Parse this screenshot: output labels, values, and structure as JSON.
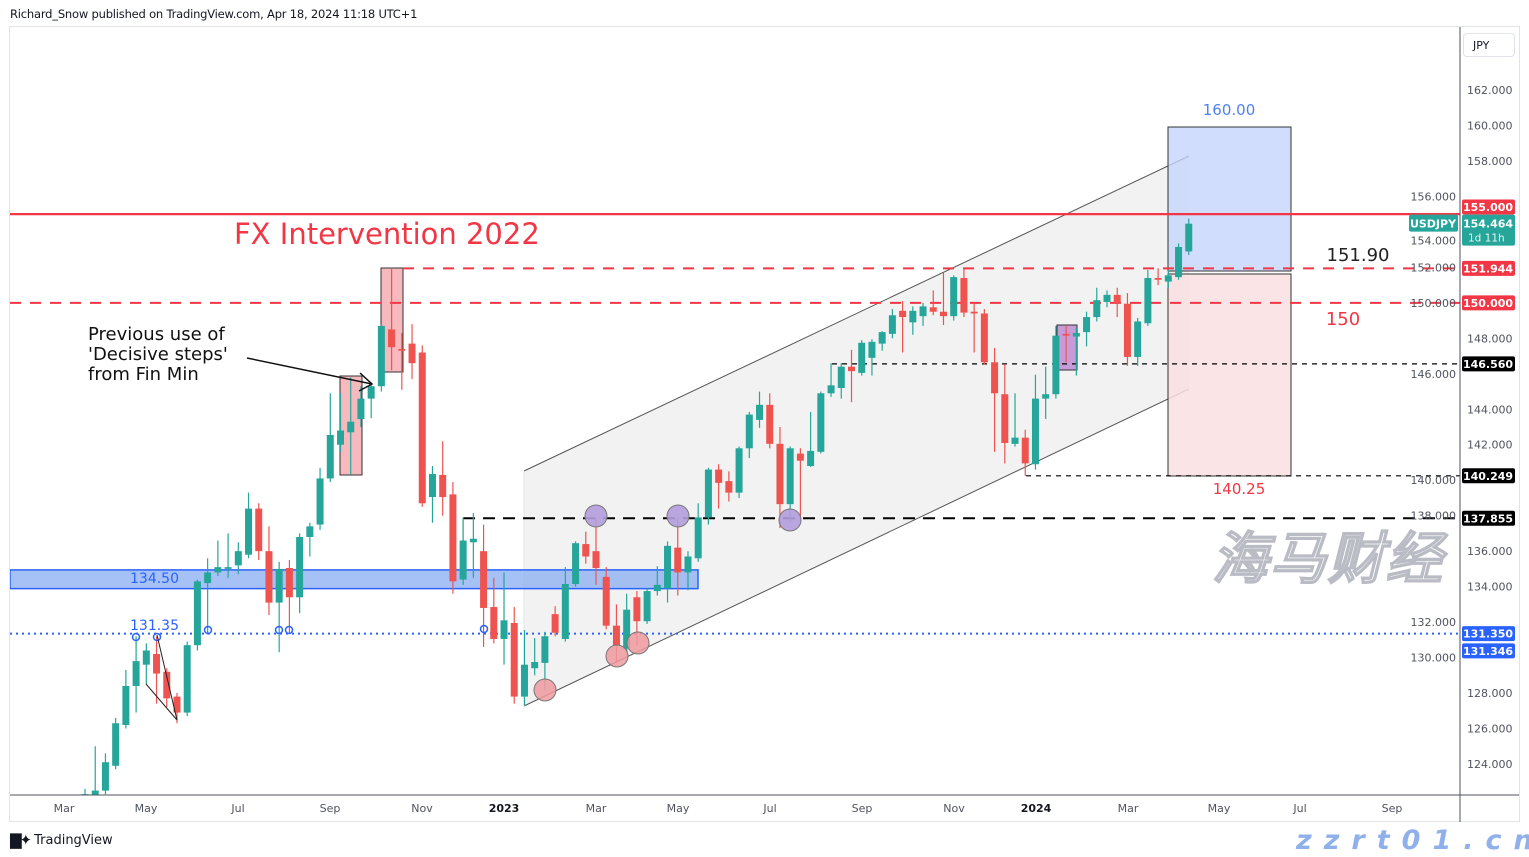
{
  "header": {
    "text": "Richard_Snow published on TradingView.com, Apr 18, 2024 11:18 UTC+1"
  },
  "footer": {
    "logo_mark": "TV",
    "brand": "TradingView"
  },
  "watermark": {
    "line1": "海马财经",
    "line2": "zzrt01.cn"
  },
  "chart_data": {
    "type": "candlestick",
    "symbol": "USDJPY",
    "currency": "JPY",
    "last_price": "154.464",
    "countdown": "1d 11h",
    "colors": {
      "up": "#26a69a",
      "down": "#ef5350",
      "resistance": "#f23645",
      "support_zone": "#2962ff"
    },
    "y_range": [
      122,
      163.5
    ],
    "y_ticks": [
      "162.000",
      "160.000",
      "158.000",
      "156.000",
      "154.000",
      "152.000",
      "150.000",
      "148.000",
      "146.000",
      "144.000",
      "142.000",
      "140.000",
      "138.000",
      "136.000",
      "134.000",
      "132.000",
      "130.000",
      "128.000",
      "126.000",
      "124.000"
    ],
    "x_ticks": [
      "Mar",
      "May",
      "Jul",
      "Sep",
      "Nov",
      "2023",
      "Mar",
      "May",
      "Jul",
      "Sep",
      "Nov",
      "2024",
      "Mar",
      "May",
      "Jul",
      "Sep"
    ],
    "candles": [
      [
        121.9,
        122.6,
        121.6,
        122.3
      ],
      [
        122.2,
        125.0,
        122.0,
        122.5
      ],
      [
        122.5,
        124.6,
        122.3,
        124.1
      ],
      [
        123.9,
        126.6,
        123.7,
        126.3
      ],
      [
        126.2,
        129.3,
        126.0,
        128.4
      ],
      [
        128.4,
        131.2,
        126.9,
        129.8
      ],
      [
        129.6,
        130.8,
        128.5,
        130.4
      ],
      [
        130.2,
        131.2,
        127.4,
        129.1
      ],
      [
        129.2,
        129.4,
        127.2,
        127.7
      ],
      [
        127.8,
        128.0,
        126.3,
        126.9
      ],
      [
        126.9,
        130.9,
        126.7,
        130.7
      ],
      [
        130.7,
        134.4,
        130.4,
        134.3
      ],
      [
        134.2,
        135.6,
        131.3,
        134.8
      ],
      [
        134.8,
        136.6,
        134.6,
        135.1
      ],
      [
        135.0,
        137.0,
        134.5,
        135.1
      ],
      [
        135.2,
        136.5,
        134.7,
        136.0
      ],
      [
        135.8,
        139.3,
        135.6,
        138.4
      ],
      [
        138.4,
        138.7,
        135.5,
        136.0
      ],
      [
        136.0,
        137.4,
        132.4,
        133.1
      ],
      [
        133.1,
        135.4,
        130.3,
        135.0
      ],
      [
        135.05,
        135.5,
        131.4,
        133.4
      ],
      [
        133.4,
        137.0,
        132.5,
        136.8
      ],
      [
        136.8,
        137.6,
        135.7,
        137.4
      ],
      [
        137.5,
        140.7,
        137.2,
        140.1
      ],
      [
        140.1,
        144.9,
        139.9,
        142.55
      ],
      [
        142.0,
        144.9,
        141.6,
        142.8
      ],
      [
        142.7,
        145.8,
        140.3,
        143.3
      ],
      [
        143.45,
        145.3,
        143.0,
        144.6
      ],
      [
        144.6,
        145.5,
        143.5,
        145.3
      ],
      [
        145.3,
        148.8,
        145.0,
        148.7
      ],
      [
        148.5,
        151.9,
        146.2,
        147.5
      ],
      [
        147.4,
        148.3,
        145.1,
        147.3
      ],
      [
        147.7,
        148.8,
        145.7,
        146.6
      ],
      [
        147.2,
        147.6,
        138.5,
        138.7
      ],
      [
        139.05,
        140.8,
        137.6,
        140.35
      ],
      [
        140.3,
        142.2,
        138.0,
        139.05
      ],
      [
        139.2,
        139.9,
        133.6,
        134.3
      ],
      [
        134.4,
        137.9,
        134.1,
        136.6
      ],
      [
        136.5,
        138.15,
        134.5,
        136.7
      ],
      [
        136.0,
        137.5,
        130.6,
        132.8
      ],
      [
        132.85,
        134.5,
        130.8,
        131.05
      ],
      [
        131.05,
        134.8,
        129.6,
        132.1
      ],
      [
        131.95,
        132.85,
        127.4,
        127.8
      ],
      [
        127.8,
        131.55,
        127.3,
        129.6
      ],
      [
        129.4,
        131.1,
        129.0,
        129.75
      ],
      [
        129.7,
        131.45,
        128.2,
        131.2
      ],
      [
        132.45,
        132.9,
        131.2,
        131.4
      ],
      [
        131.05,
        135.1,
        130.9,
        134.15
      ],
      [
        134.15,
        136.55,
        134.0,
        136.45
      ],
      [
        136.4,
        137.1,
        135.3,
        135.7
      ],
      [
        136.0,
        137.9,
        134.1,
        135.05
      ],
      [
        134.55,
        135.1,
        131.6,
        131.8
      ],
      [
        131.8,
        133.0,
        129.7,
        130.7
      ],
      [
        130.5,
        133.6,
        130.3,
        132.7
      ],
      [
        133.4,
        133.75,
        130.7,
        132.05
      ],
      [
        132.05,
        133.9,
        131.9,
        133.75
      ],
      [
        133.75,
        135.15,
        133.5,
        134.1
      ],
      [
        133.9,
        136.55,
        133.1,
        136.3
      ],
      [
        136.2,
        137.9,
        133.5,
        134.8
      ],
      [
        134.8,
        136.0,
        133.8,
        135.7
      ],
      [
        135.6,
        138.7,
        135.4,
        137.9
      ],
      [
        137.9,
        140.7,
        137.5,
        140.6
      ],
      [
        140.6,
        140.9,
        138.4,
        139.85
      ],
      [
        139.95,
        140.5,
        138.8,
        139.3
      ],
      [
        139.3,
        141.9,
        139.0,
        141.8
      ],
      [
        141.8,
        143.85,
        141.25,
        143.7
      ],
      [
        143.4,
        145.0,
        142.95,
        144.25
      ],
      [
        144.25,
        144.9,
        141.8,
        142.05
      ],
      [
        142.05,
        143.0,
        137.3,
        138.65
      ],
      [
        138.65,
        141.9,
        137.65,
        141.8
      ],
      [
        141.5,
        141.8,
        137.75,
        141.1
      ],
      [
        140.8,
        143.85,
        140.75,
        141.65
      ],
      [
        141.6,
        145.0,
        141.5,
        144.9
      ],
      [
        144.9,
        146.6,
        144.7,
        145.35
      ],
      [
        145.2,
        146.6,
        144.6,
        146.4
      ],
      [
        146.4,
        147.35,
        144.4,
        146.15
      ],
      [
        146.05,
        147.9,
        145.9,
        147.75
      ],
      [
        146.9,
        147.95,
        145.9,
        147.8
      ],
      [
        147.7,
        148.4,
        147.3,
        148.35
      ],
      [
        148.25,
        149.65,
        148.0,
        149.3
      ],
      [
        149.55,
        150.1,
        147.2,
        149.2
      ],
      [
        148.9,
        149.8,
        148.2,
        149.55
      ],
      [
        149.25,
        150.0,
        148.7,
        149.8
      ],
      [
        149.75,
        150.7,
        149.3,
        149.5
      ],
      [
        149.5,
        151.7,
        148.75,
        149.25
      ],
      [
        149.25,
        151.55,
        149.0,
        151.45
      ],
      [
        151.4,
        151.95,
        149.2,
        149.45
      ],
      [
        149.5,
        149.95,
        147.2,
        149.4
      ],
      [
        149.4,
        149.65,
        146.5,
        146.65
      ],
      [
        146.65,
        147.45,
        141.6,
        144.9
      ],
      [
        144.85,
        146.55,
        140.95,
        142.1
      ],
      [
        142.05,
        144.9,
        141.9,
        142.4
      ],
      [
        142.4,
        142.85,
        140.25,
        140.95
      ],
      [
        140.9,
        145.95,
        140.6,
        144.6
      ],
      [
        144.6,
        146.4,
        143.45,
        144.85
      ],
      [
        144.85,
        148.7,
        144.6,
        148.15
      ],
      [
        148.25,
        148.7,
        146.65,
        148.15
      ],
      [
        148.1,
        148.6,
        145.9,
        148.3
      ],
      [
        148.35,
        149.5,
        147.55,
        149.2
      ],
      [
        149.2,
        150.85,
        148.95,
        150.15
      ],
      [
        150.05,
        150.7,
        149.75,
        150.45
      ],
      [
        150.45,
        150.85,
        149.2,
        150.0
      ],
      [
        149.95,
        150.55,
        146.45,
        146.95
      ],
      [
        146.95,
        149.15,
        146.45,
        148.95
      ],
      [
        148.85,
        151.85,
        148.7,
        151.4
      ],
      [
        151.4,
        151.95,
        151.0,
        151.3
      ],
      [
        151.2,
        151.85,
        150.85,
        151.55
      ],
      [
        151.45,
        153.35,
        151.3,
        153.15
      ],
      [
        152.9,
        154.75,
        152.7,
        154.464
      ]
    ],
    "levels": [
      {
        "price": 155.0,
        "tag": "155.000",
        "style": "solid",
        "color": "#f23645"
      },
      {
        "price": 151.944,
        "tag": "151.944",
        "style": "dashed",
        "color": "#f23645"
      },
      {
        "price": 150.0,
        "tag": "150.000",
        "style": "dashed",
        "color": "#f23645"
      },
      {
        "price": 146.56,
        "tag": "146.560",
        "style": "dashed-thin",
        "color": "#000000"
      },
      {
        "price": 140.249,
        "tag": "140.249",
        "style": "dashed-thin",
        "color": "#000000"
      },
      {
        "price": 137.855,
        "tag": "137.855",
        "style": "dashed-thick",
        "color": "#000000"
      },
      {
        "price": 131.35,
        "tag": "131.350",
        "style": "dotted",
        "color": "#2962ff"
      }
    ],
    "extra_tag": "131.346",
    "support_zone": {
      "label": "134.50",
      "price_low": 134.0,
      "price_high": 135.0
    },
    "dotted_label": "131.35",
    "annotations": {
      "fx_intervention": "FX Intervention 2022",
      "decisive_steps": [
        "Previous use of",
        "'Decisive steps'",
        "from Fin Min"
      ],
      "target_label": "160.00",
      "entry_label": "151.90",
      "level_150_label": "150",
      "stop_label": "140.25"
    }
  }
}
